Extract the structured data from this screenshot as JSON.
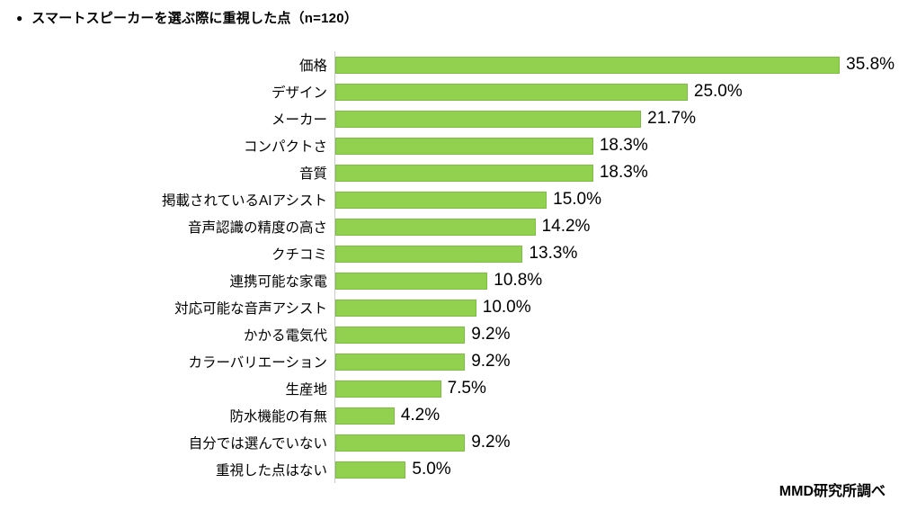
{
  "title": {
    "bullet": "●",
    "text": "スマートスピーカーを選ぶ際に重視した点（n=120）"
  },
  "source": "MMD研究所調べ",
  "chart_data": {
    "type": "bar",
    "orientation": "horizontal",
    "title": "スマートスピーカーを選ぶ際に重視した点（n=120）",
    "categories": [
      "価格",
      "デザイン",
      "メーカー",
      "コンパクトさ",
      "音質",
      "掲載されているAIアシスト",
      "音声認識の精度の高さ",
      "クチコミ",
      "連携可能な家電",
      "対応可能な音声アシスト",
      "かかる電気代",
      "カラーバリエーション",
      "生産地",
      "防水機能の有無",
      "自分では選んでいない",
      "重視した点はない"
    ],
    "values": [
      35.8,
      25.0,
      21.7,
      18.3,
      18.3,
      15.0,
      14.2,
      13.3,
      10.8,
      10.0,
      9.2,
      9.2,
      7.5,
      4.2,
      9.2,
      5.0
    ],
    "value_labels": [
      "35.8%",
      "25.0%",
      "21.7%",
      "18.3%",
      "18.3%",
      "15.0%",
      "14.2%",
      "13.3%",
      "10.8%",
      "10.0%",
      "9.2%",
      "9.2%",
      "7.5%",
      "4.2%",
      "9.2%",
      "5.0%"
    ],
    "xlim": [
      0,
      40
    ],
    "grid": false,
    "legend": false,
    "bar_color": "#92D050",
    "bar_border_color": "#7CBE3F",
    "axis_line_color": "#C9C9C9",
    "text_color": "#000000"
  }
}
